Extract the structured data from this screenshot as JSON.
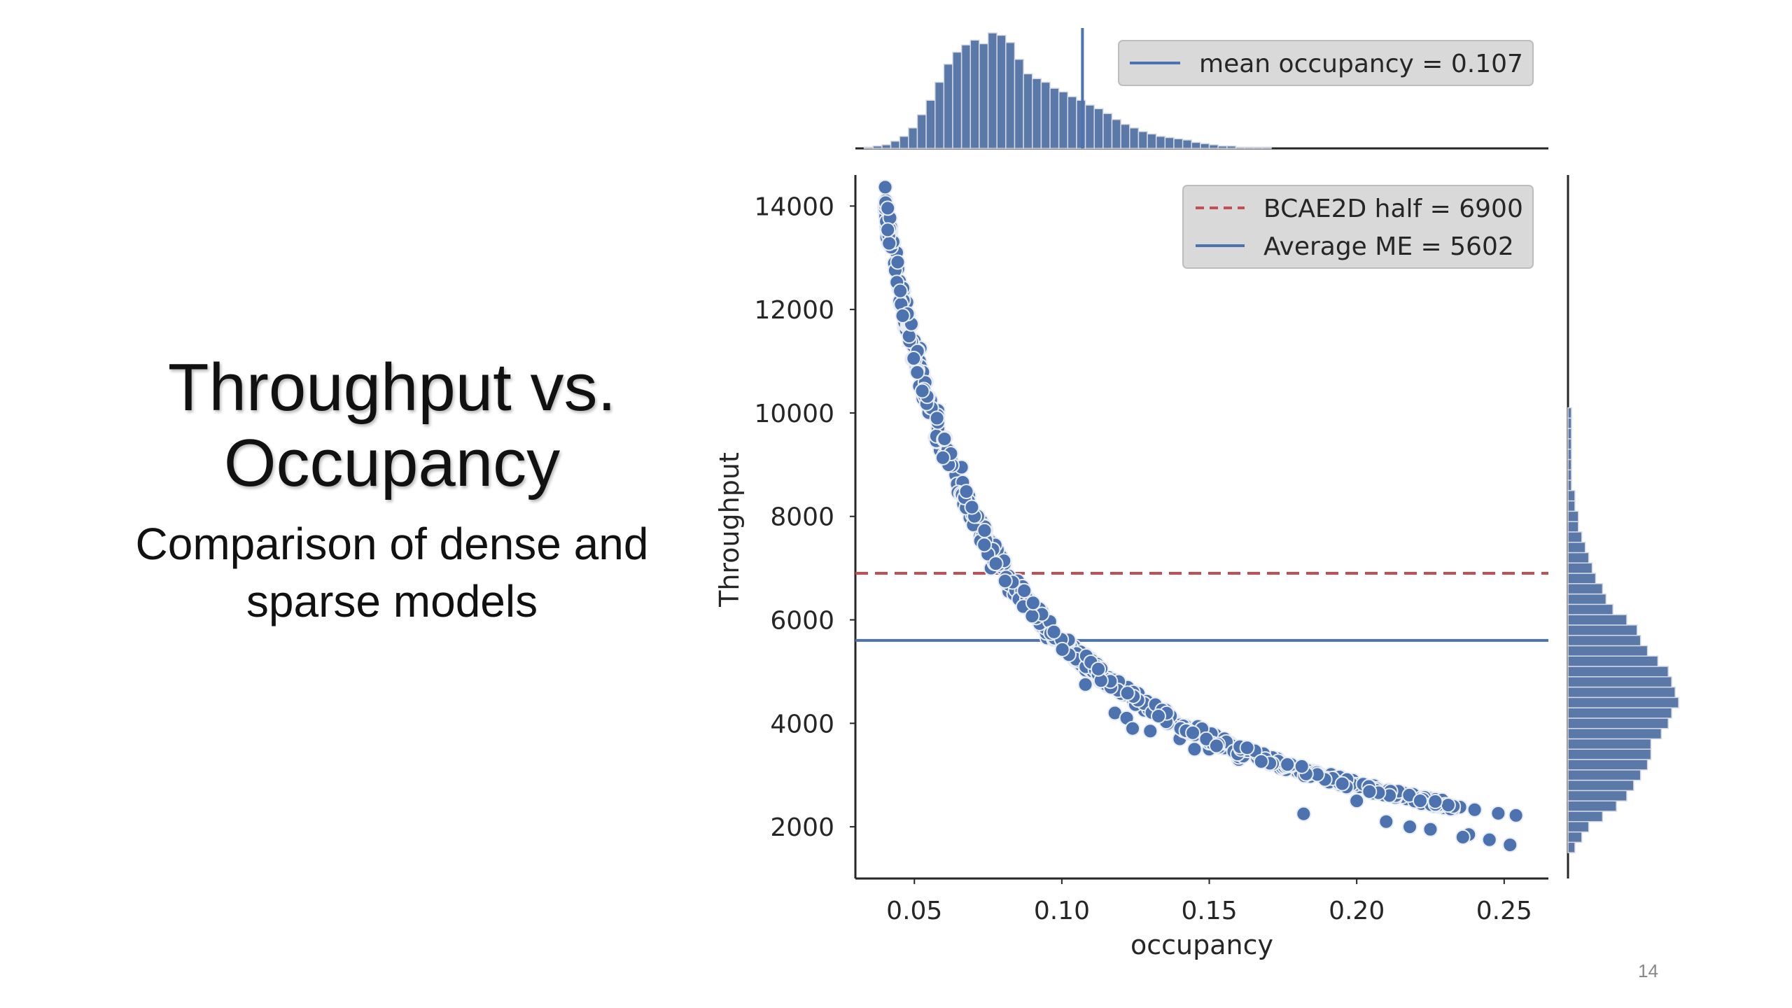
{
  "slide": {
    "title_line1": "Throughput vs.",
    "title_line2": "Occupancy",
    "subtitle_line1": "Comparison of dense and",
    "subtitle_line2": "sparse models",
    "page_number": "14"
  },
  "colors": {
    "scatter": "#4c72b0",
    "hist_fill": "#5a78a8",
    "hist_edge": "#d4d9e2",
    "mean_line": "#4c72b0",
    "bcae_line": "#c44e52",
    "avg_line": "#4c72b0",
    "legend_bg": "#d9d9d9",
    "axis": "#262626"
  },
  "chart_data": {
    "type": "scatter",
    "xlabel": "occupancy",
    "ylabel": "Throughput",
    "xlim": [
      0.03,
      0.265
    ],
    "ylim": [
      1000,
      14600
    ],
    "x_ticks": [
      0.05,
      0.1,
      0.15,
      0.2,
      0.25
    ],
    "x_tick_labels": [
      "0.05",
      "0.10",
      "0.15",
      "0.20",
      "0.25"
    ],
    "y_ticks": [
      2000,
      4000,
      6000,
      8000,
      10000,
      12000,
      14000
    ],
    "y_tick_labels": [
      "2000",
      "4000",
      "6000",
      "8000",
      "10000",
      "12000",
      "14000"
    ],
    "curve_model": "y ≈ 560 / x",
    "scatter_points": [
      [
        0.04,
        13900
      ],
      [
        0.041,
        13800
      ],
      [
        0.042,
        13500
      ],
      [
        0.043,
        13300
      ],
      [
        0.044,
        13100
      ],
      [
        0.045,
        12550
      ],
      [
        0.046,
        12400
      ],
      [
        0.047,
        12000
      ],
      [
        0.048,
        11900
      ],
      [
        0.049,
        11700
      ],
      [
        0.05,
        11400
      ],
      [
        0.051,
        11200
      ],
      [
        0.052,
        10900
      ],
      [
        0.054,
        10600
      ],
      [
        0.055,
        10300
      ],
      [
        0.056,
        10000
      ],
      [
        0.058,
        9700
      ],
      [
        0.06,
        9400
      ],
      [
        0.062,
        9100
      ],
      [
        0.064,
        8800
      ],
      [
        0.066,
        8500
      ],
      [
        0.068,
        8300
      ],
      [
        0.07,
        8050
      ],
      [
        0.072,
        7800
      ],
      [
        0.074,
        7600
      ],
      [
        0.076,
        7400
      ],
      [
        0.078,
        7200
      ],
      [
        0.08,
        7000
      ],
      [
        0.082,
        6850
      ],
      [
        0.084,
        6650
      ],
      [
        0.086,
        6500
      ],
      [
        0.088,
        6350
      ],
      [
        0.09,
        6200
      ],
      [
        0.092,
        6050
      ],
      [
        0.094,
        5950
      ],
      [
        0.096,
        5820
      ],
      [
        0.098,
        5700
      ],
      [
        0.1,
        5600
      ],
      [
        0.103,
        5430
      ],
      [
        0.106,
        5280
      ],
      [
        0.109,
        5130
      ],
      [
        0.112,
        5000
      ],
      [
        0.115,
        4870
      ],
      [
        0.118,
        4750
      ],
      [
        0.121,
        4630
      ],
      [
        0.124,
        4520
      ],
      [
        0.127,
        4410
      ],
      [
        0.13,
        4300
      ],
      [
        0.134,
        4180
      ],
      [
        0.138,
        4060
      ],
      [
        0.142,
        3950
      ],
      [
        0.146,
        3840
      ],
      [
        0.15,
        3730
      ],
      [
        0.155,
        3620
      ],
      [
        0.16,
        3500
      ],
      [
        0.165,
        3400
      ],
      [
        0.17,
        3300
      ],
      [
        0.175,
        3200
      ],
      [
        0.18,
        3110
      ],
      [
        0.185,
        3030
      ],
      [
        0.19,
        2950
      ],
      [
        0.195,
        2870
      ],
      [
        0.2,
        2800
      ],
      [
        0.205,
        2730
      ],
      [
        0.21,
        2670
      ],
      [
        0.215,
        2600
      ],
      [
        0.22,
        2550
      ],
      [
        0.225,
        2490
      ],
      [
        0.23,
        2440
      ],
      [
        0.235,
        2380
      ],
      [
        0.24,
        2330
      ],
      [
        0.248,
        2260
      ],
      [
        0.254,
        2220
      ],
      [
        0.052,
        11250
      ],
      [
        0.058,
        10050
      ],
      [
        0.066,
        8950
      ],
      [
        0.076,
        7000
      ],
      [
        0.082,
        6550
      ],
      [
        0.095,
        5650
      ],
      [
        0.108,
        4750
      ],
      [
        0.118,
        4200
      ],
      [
        0.122,
        4100
      ],
      [
        0.124,
        3900
      ],
      [
        0.13,
        3850
      ],
      [
        0.14,
        3700
      ],
      [
        0.15,
        3500
      ],
      [
        0.16,
        3300
      ],
      [
        0.182,
        2250
      ],
      [
        0.2,
        2500
      ],
      [
        0.218,
        2000
      ],
      [
        0.225,
        1950
      ],
      [
        0.238,
        1850
      ],
      [
        0.245,
        1750
      ],
      [
        0.252,
        1650
      ],
      [
        0.236,
        1800
      ],
      [
        0.21,
        2100
      ],
      [
        0.16,
        3350
      ],
      [
        0.145,
        3500
      ]
    ],
    "top_histogram": {
      "bin_edges_start": 0.033,
      "bin_width": 0.003,
      "counts": [
        1,
        2,
        3,
        6,
        10,
        17,
        28,
        40,
        55,
        70,
        80,
        86,
        90,
        87,
        96,
        94,
        88,
        74,
        62,
        58,
        55,
        50,
        47,
        43,
        40,
        36,
        33,
        29,
        24,
        20,
        17,
        14,
        12,
        10,
        9,
        8,
        7,
        5,
        4,
        3,
        2,
        2,
        1,
        1,
        1,
        1
      ]
    },
    "right_histogram": {
      "bin_edges_start": 1500,
      "bin_width": 200,
      "counts": [
        2,
        4,
        6,
        10,
        14,
        17,
        19,
        21,
        23,
        24,
        24,
        27,
        29,
        30,
        32,
        31,
        30,
        29,
        26,
        23,
        21,
        20,
        17,
        13,
        11,
        10,
        8,
        7,
        6,
        5,
        4,
        3,
        3,
        2,
        2,
        1,
        1,
        1,
        1,
        1,
        1,
        1,
        1
      ]
    },
    "reference_lines": {
      "bcae2d_half": 6900,
      "average_me": 5602,
      "mean_occupancy": 0.107
    },
    "legend_top": {
      "label": "mean occupancy = 0.107",
      "placement": "top-right"
    },
    "legend_main": [
      {
        "label": "BCAE2D half = 6900",
        "style": "dashed",
        "color": "#c44e52"
      },
      {
        "label": "Average ME = 5602",
        "style": "solid",
        "color": "#4c72b0"
      }
    ],
    "legend_main_placement": "top-right"
  }
}
